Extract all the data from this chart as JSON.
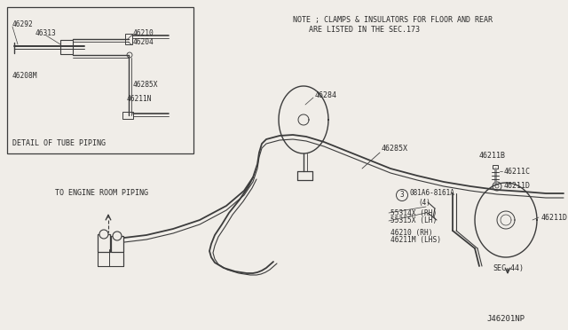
{
  "bg_color": "#f0ede8",
  "line_color": "#3c3c3c",
  "text_color": "#2a2a2a",
  "note_line1": "NOTE ; CLAMPS & INSULATORS FOR FLOOR AND REAR",
  "note_line2": "ARE LISTED IN THE SEC.173",
  "detail_label": "DETAIL OF TUBE PIPING",
  "engine_label": "TO ENGINE ROOM PIPING",
  "fs": 6.0
}
